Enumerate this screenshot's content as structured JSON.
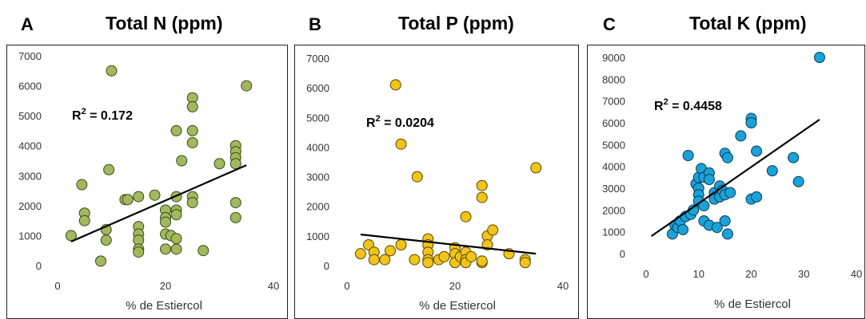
{
  "chart_data": [
    {
      "type": "scatter",
      "panel_label": "A",
      "title": "Total N (ppm)",
      "xlabel": "% de Estiercol",
      "ylabel": "",
      "xlim": [
        0,
        40
      ],
      "ylim": [
        0,
        7000
      ],
      "x_ticks": [
        0,
        20,
        40
      ],
      "y_ticks": [
        0,
        1000,
        2000,
        3000,
        4000,
        5000,
        6000,
        7000
      ],
      "annotation_prefix": "R",
      "annotation_sup": "2",
      "annotation_value": " = 0.172",
      "color": "#a3b85c",
      "stroke": "#3a4a1a",
      "trendline": {
        "x": [
          2.5,
          35
        ],
        "y": [
          800,
          3350
        ]
      },
      "points": [
        [
          2.5,
          1000
        ],
        [
          4.5,
          2700
        ],
        [
          5,
          1750
        ],
        [
          5,
          1500
        ],
        [
          8,
          150
        ],
        [
          9,
          1200
        ],
        [
          9,
          850
        ],
        [
          9.5,
          3200
        ],
        [
          10,
          6500
        ],
        [
          12.5,
          2200
        ],
        [
          13,
          2200
        ],
        [
          15,
          2300
        ],
        [
          15,
          1300
        ],
        [
          15,
          1050
        ],
        [
          15,
          850
        ],
        [
          15,
          550
        ],
        [
          15,
          450
        ],
        [
          18,
          2350
        ],
        [
          20,
          1850
        ],
        [
          20,
          1600
        ],
        [
          20,
          1450
        ],
        [
          20,
          1050
        ],
        [
          20,
          550
        ],
        [
          21,
          1000
        ],
        [
          22,
          4500
        ],
        [
          22,
          2300
        ],
        [
          22,
          1850
        ],
        [
          22,
          1700
        ],
        [
          22,
          900
        ],
        [
          22,
          550
        ],
        [
          23,
          3500
        ],
        [
          25,
          5600
        ],
        [
          25,
          5300
        ],
        [
          25,
          4500
        ],
        [
          25,
          4100
        ],
        [
          25,
          2300
        ],
        [
          25,
          2100
        ],
        [
          27,
          500
        ],
        [
          30,
          3400
        ],
        [
          33,
          4000
        ],
        [
          33,
          3800
        ],
        [
          33,
          3600
        ],
        [
          33,
          3400
        ],
        [
          33,
          2100
        ],
        [
          33,
          1600
        ],
        [
          35,
          6000
        ]
      ]
    },
    {
      "type": "scatter",
      "panel_label": "B",
      "title": "Total P (ppm)",
      "xlabel": "% de Estiercol",
      "ylabel": "",
      "xlim": [
        0,
        40
      ],
      "ylim": [
        0,
        7000
      ],
      "x_ticks": [
        0,
        20,
        40
      ],
      "y_ticks": [
        0,
        1000,
        2000,
        3000,
        4000,
        5000,
        6000,
        7000
      ],
      "annotation_prefix": "R",
      "annotation_sup": "2",
      "annotation_value": " = 0.0204",
      "color": "#f0c419",
      "stroke": "#5a4600",
      "trendline": {
        "x": [
          2.5,
          35
        ],
        "y": [
          1050,
          400
        ]
      },
      "points": [
        [
          2.5,
          400
        ],
        [
          4,
          700
        ],
        [
          5,
          450
        ],
        [
          5,
          200
        ],
        [
          7,
          200
        ],
        [
          8,
          500
        ],
        [
          9,
          6100
        ],
        [
          10,
          4100
        ],
        [
          10,
          700
        ],
        [
          12.5,
          200
        ],
        [
          13,
          3000
        ],
        [
          15,
          900
        ],
        [
          15,
          700
        ],
        [
          15,
          450
        ],
        [
          15,
          200
        ],
        [
          15,
          100
        ],
        [
          17,
          200
        ],
        [
          18,
          300
        ],
        [
          20,
          600
        ],
        [
          20,
          400
        ],
        [
          20,
          100
        ],
        [
          21,
          300
        ],
        [
          22,
          1650
        ],
        [
          22,
          450
        ],
        [
          22,
          200
        ],
        [
          22,
          100
        ],
        [
          23,
          300
        ],
        [
          25,
          2700
        ],
        [
          25,
          2300
        ],
        [
          25,
          100
        ],
        [
          25,
          150
        ],
        [
          26,
          1000
        ],
        [
          26,
          700
        ],
        [
          27,
          1200
        ],
        [
          30,
          400
        ],
        [
          33,
          200
        ],
        [
          33,
          100
        ],
        [
          35,
          3300
        ]
      ]
    },
    {
      "type": "scatter",
      "panel_label": "C",
      "title": "Total K (ppm)",
      "xlabel": "% de Estiercol",
      "ylabel": "",
      "xlim": [
        0,
        40
      ],
      "ylim": [
        0,
        9000
      ],
      "x_ticks": [
        0,
        10,
        20,
        30,
        40
      ],
      "y_ticks": [
        0,
        1000,
        2000,
        3000,
        4000,
        5000,
        6000,
        7000,
        8000,
        9000
      ],
      "annotation_prefix": "R",
      "annotation_sup": "2",
      "annotation_value": " = 0.4458",
      "color": "#1aa3d8",
      "stroke": "#0a3a55",
      "trendline": {
        "x": [
          1,
          33
        ],
        "y": [
          800,
          6150
        ]
      },
      "points": [
        [
          5,
          900
        ],
        [
          5.5,
          1300
        ],
        [
          6,
          1200
        ],
        [
          6.5,
          1500
        ],
        [
          7,
          1100
        ],
        [
          7.5,
          1700
        ],
        [
          8,
          4500
        ],
        [
          8.5,
          1800
        ],
        [
          9,
          2000
        ],
        [
          9.5,
          3200
        ],
        [
          10,
          3500
        ],
        [
          10,
          3000
        ],
        [
          10,
          2700
        ],
        [
          10,
          2400
        ],
        [
          10.5,
          3900
        ],
        [
          11,
          3500
        ],
        [
          11,
          2200
        ],
        [
          11,
          1500
        ],
        [
          12,
          3700
        ],
        [
          12,
          3400
        ],
        [
          12,
          1300
        ],
        [
          13,
          2800
        ],
        [
          13,
          2500
        ],
        [
          13.5,
          1200
        ],
        [
          14,
          3100
        ],
        [
          14,
          2600
        ],
        [
          14.5,
          2900
        ],
        [
          15,
          4600
        ],
        [
          15,
          2700
        ],
        [
          15,
          1500
        ],
        [
          15.5,
          4400
        ],
        [
          15.5,
          900
        ],
        [
          16,
          2800
        ],
        [
          18,
          5400
        ],
        [
          20,
          6200
        ],
        [
          20,
          6000
        ],
        [
          20,
          2500
        ],
        [
          21,
          4700
        ],
        [
          21,
          2600
        ],
        [
          24,
          3800
        ],
        [
          28,
          4400
        ],
        [
          29,
          3300
        ],
        [
          33,
          9000
        ]
      ]
    }
  ]
}
